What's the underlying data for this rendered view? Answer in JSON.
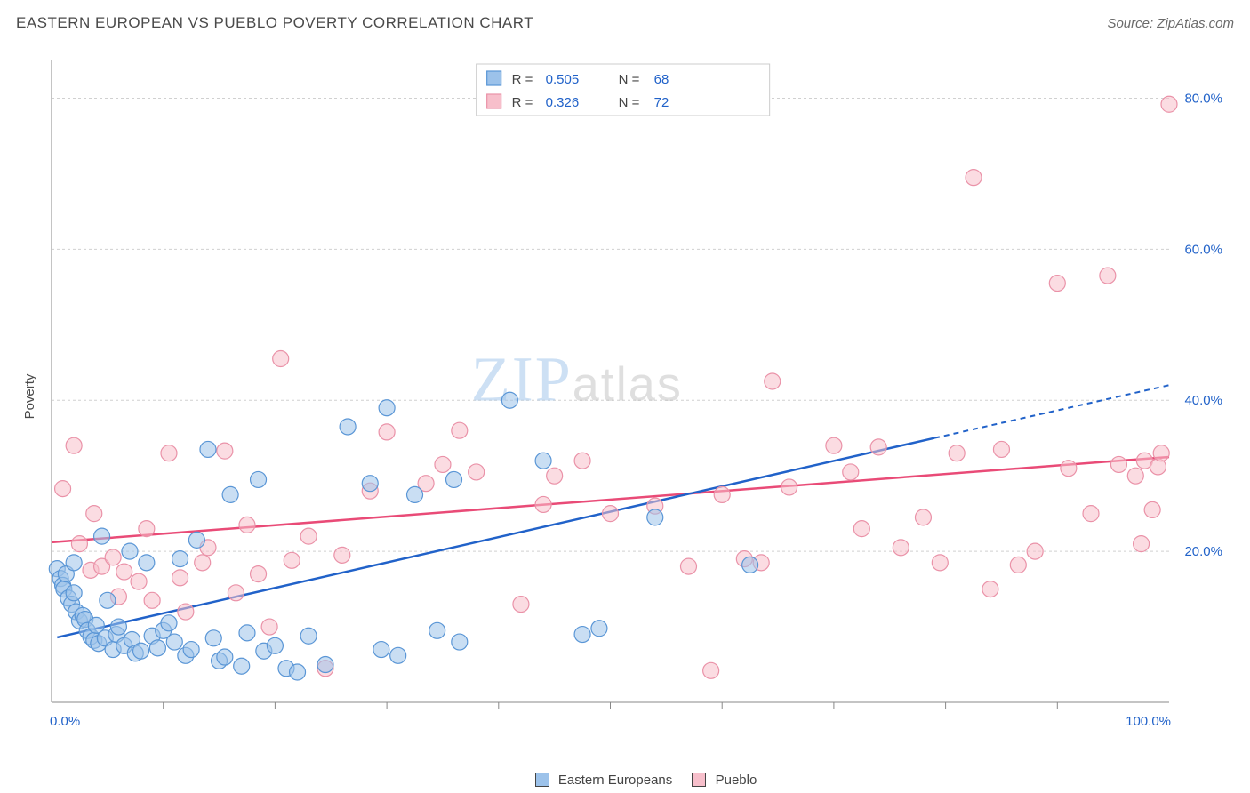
{
  "header": {
    "title": "EASTERN EUROPEAN VS PUEBLO POVERTY CORRELATION CHART",
    "source": "Source: ZipAtlas.com"
  },
  "chart": {
    "type": "scatter",
    "ylabel": "Poverty",
    "xlim": [
      0,
      100
    ],
    "ylim": [
      0,
      85
    ],
    "xtick_labels": [
      "0.0%",
      "100.0%"
    ],
    "ytick_values": [
      20,
      40,
      60,
      80
    ],
    "ytick_labels": [
      "20.0%",
      "40.0%",
      "60.0%",
      "80.0%"
    ],
    "xtick_minor": [
      10,
      20,
      30,
      40,
      50,
      60,
      70,
      80,
      90
    ],
    "background_color": "#ffffff",
    "grid_color": "#d0d0d0",
    "axis_color": "#888888",
    "marker_radius": 9,
    "watermark": {
      "part1": "ZIP",
      "part2": "atlas"
    },
    "series": [
      {
        "name": "Eastern Europeans",
        "color_fill": "#9cc2ea",
        "color_stroke": "#5a96d6",
        "R": "0.505",
        "N": "68",
        "trend": {
          "x1": 0.5,
          "y1": 8.6,
          "x2": 79,
          "y2": 35.0,
          "dash_to_x": 100,
          "dash_to_y": 42.0
        },
        "points": [
          [
            0.5,
            17.7
          ],
          [
            0.8,
            16.4
          ],
          [
            1.0,
            15.5
          ],
          [
            1.1,
            15.0
          ],
          [
            1.3,
            17.0
          ],
          [
            1.5,
            13.8
          ],
          [
            1.8,
            13.0
          ],
          [
            2.0,
            18.5
          ],
          [
            2.0,
            14.5
          ],
          [
            2.2,
            12.0
          ],
          [
            2.5,
            10.8
          ],
          [
            2.8,
            11.5
          ],
          [
            3.0,
            11.0
          ],
          [
            3.2,
            9.5
          ],
          [
            3.5,
            8.7
          ],
          [
            3.8,
            8.2
          ],
          [
            4.0,
            10.2
          ],
          [
            4.2,
            7.8
          ],
          [
            4.5,
            22.0
          ],
          [
            4.8,
            8.5
          ],
          [
            5.0,
            13.5
          ],
          [
            5.5,
            7.0
          ],
          [
            5.8,
            9.0
          ],
          [
            6.0,
            10.0
          ],
          [
            6.5,
            7.5
          ],
          [
            7.0,
            20.0
          ],
          [
            7.2,
            8.3
          ],
          [
            7.5,
            6.5
          ],
          [
            8.0,
            6.8
          ],
          [
            8.5,
            18.5
          ],
          [
            9.0,
            8.8
          ],
          [
            9.5,
            7.2
          ],
          [
            10.0,
            9.5
          ],
          [
            10.5,
            10.5
          ],
          [
            11.0,
            8.0
          ],
          [
            11.5,
            19.0
          ],
          [
            12.0,
            6.2
          ],
          [
            12.5,
            7.0
          ],
          [
            13.0,
            21.5
          ],
          [
            14.0,
            33.5
          ],
          [
            14.5,
            8.5
          ],
          [
            15.0,
            5.5
          ],
          [
            15.5,
            6.0
          ],
          [
            16.0,
            27.5
          ],
          [
            17.0,
            4.8
          ],
          [
            17.5,
            9.2
          ],
          [
            18.5,
            29.5
          ],
          [
            19.0,
            6.8
          ],
          [
            20.0,
            7.5
          ],
          [
            21.0,
            4.5
          ],
          [
            22.0,
            4.0
          ],
          [
            23.0,
            8.8
          ],
          [
            24.5,
            5.0
          ],
          [
            26.5,
            36.5
          ],
          [
            28.5,
            29.0
          ],
          [
            29.5,
            7.0
          ],
          [
            30.0,
            39.0
          ],
          [
            31.0,
            6.2
          ],
          [
            32.5,
            27.5
          ],
          [
            34.5,
            9.5
          ],
          [
            36.0,
            29.5
          ],
          [
            36.5,
            8.0
          ],
          [
            41.0,
            40.0
          ],
          [
            44.0,
            32.0
          ],
          [
            47.5,
            9.0
          ],
          [
            49.0,
            9.8
          ],
          [
            54.0,
            24.5
          ],
          [
            62.5,
            18.2
          ]
        ]
      },
      {
        "name": "Pueblo",
        "color_fill": "#f7bfcb",
        "color_stroke": "#ea92a8",
        "R": "0.326",
        "N": "72",
        "trend": {
          "x1": 0,
          "y1": 21.2,
          "x2": 100,
          "y2": 32.5
        },
        "points": [
          [
            1.0,
            28.3
          ],
          [
            2.0,
            34.0
          ],
          [
            2.5,
            21.0
          ],
          [
            3.5,
            17.5
          ],
          [
            3.8,
            25.0
          ],
          [
            4.5,
            18.0
          ],
          [
            5.5,
            19.2
          ],
          [
            6.0,
            14.0
          ],
          [
            6.5,
            17.3
          ],
          [
            7.8,
            16.0
          ],
          [
            8.5,
            23.0
          ],
          [
            9.0,
            13.5
          ],
          [
            10.5,
            33.0
          ],
          [
            11.5,
            16.5
          ],
          [
            12.0,
            12.0
          ],
          [
            13.5,
            18.5
          ],
          [
            14.0,
            20.5
          ],
          [
            15.5,
            33.3
          ],
          [
            16.5,
            14.5
          ],
          [
            17.5,
            23.5
          ],
          [
            18.5,
            17.0
          ],
          [
            19.5,
            10.0
          ],
          [
            20.5,
            45.5
          ],
          [
            21.5,
            18.8
          ],
          [
            23.0,
            22.0
          ],
          [
            24.5,
            4.5
          ],
          [
            26.0,
            19.5
          ],
          [
            28.5,
            28.0
          ],
          [
            30.0,
            35.8
          ],
          [
            33.5,
            29.0
          ],
          [
            35.0,
            31.5
          ],
          [
            36.5,
            36.0
          ],
          [
            38.0,
            30.5
          ],
          [
            42.0,
            13.0
          ],
          [
            44.0,
            26.2
          ],
          [
            45.0,
            30.0
          ],
          [
            47.5,
            32.0
          ],
          [
            50.0,
            25.0
          ],
          [
            54.0,
            26.0
          ],
          [
            55.5,
            79.5
          ],
          [
            57.0,
            18.0
          ],
          [
            59.0,
            4.2
          ],
          [
            60.0,
            27.5
          ],
          [
            62.0,
            19.0
          ],
          [
            63.5,
            18.5
          ],
          [
            64.5,
            42.5
          ],
          [
            66.0,
            28.5
          ],
          [
            70.0,
            34.0
          ],
          [
            71.5,
            30.5
          ],
          [
            72.5,
            23.0
          ],
          [
            74.0,
            33.8
          ],
          [
            76.0,
            20.5
          ],
          [
            78.0,
            24.5
          ],
          [
            79.5,
            18.5
          ],
          [
            81.0,
            33.0
          ],
          [
            82.5,
            69.5
          ],
          [
            84.0,
            15.0
          ],
          [
            85.0,
            33.5
          ],
          [
            86.5,
            18.2
          ],
          [
            88.0,
            20.0
          ],
          [
            90.0,
            55.5
          ],
          [
            91.0,
            31.0
          ],
          [
            93.0,
            25.0
          ],
          [
            94.5,
            56.5
          ],
          [
            95.5,
            31.5
          ],
          [
            97.0,
            30.0
          ],
          [
            97.5,
            21.0
          ],
          [
            97.8,
            32.0
          ],
          [
            98.5,
            25.5
          ],
          [
            99.0,
            31.2
          ],
          [
            99.3,
            33.0
          ],
          [
            100.0,
            79.2
          ]
        ]
      }
    ],
    "legend_top": {
      "R_label": "R =",
      "N_label": "N ="
    },
    "legend_bottom": [
      {
        "name": "Eastern Europeans",
        "class": "sw-blue"
      },
      {
        "name": "Pueblo",
        "class": "sw-pink"
      }
    ]
  }
}
